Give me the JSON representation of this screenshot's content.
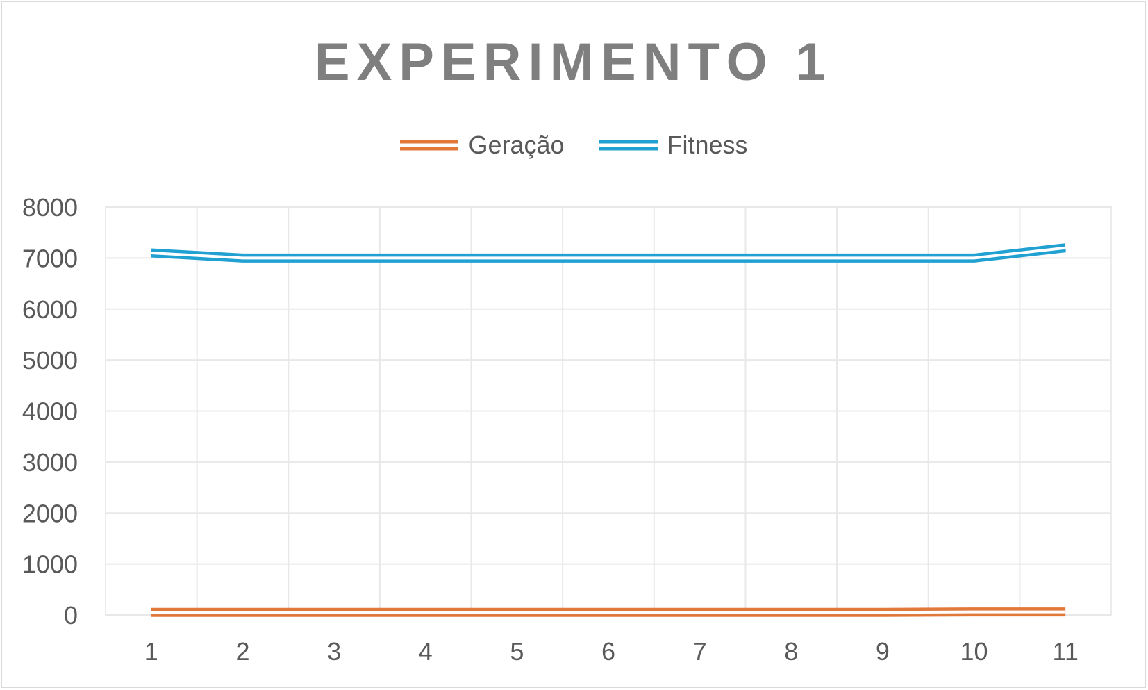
{
  "chart_data": {
    "type": "line",
    "title": "EXPERIMENTO 1",
    "categories": [
      "1",
      "2",
      "3",
      "4",
      "5",
      "6",
      "7",
      "8",
      "9",
      "10",
      "11"
    ],
    "series": [
      {
        "name": "Geração",
        "color": "#e2773a",
        "values": [
          50,
          50,
          50,
          50,
          50,
          50,
          50,
          50,
          50,
          60,
          60
        ]
      },
      {
        "name": "Fitness",
        "color": "#21a0d2",
        "values": [
          7100,
          7000,
          7000,
          7000,
          7000,
          7000,
          7000,
          7000,
          7000,
          7000,
          7200
        ]
      }
    ],
    "y_ticks": [
      "0",
      "1000",
      "2000",
      "3000",
      "4000",
      "5000",
      "6000",
      "7000",
      "8000"
    ],
    "ylim": [
      0,
      8000
    ],
    "grid": true,
    "legend_position": "top",
    "line_style": "double"
  }
}
